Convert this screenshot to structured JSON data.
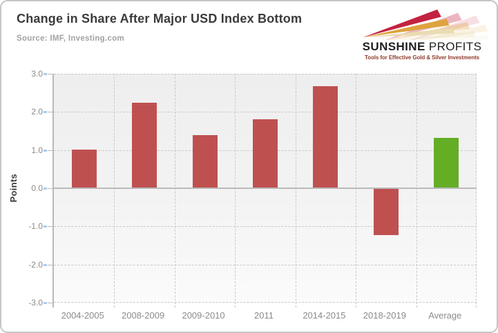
{
  "header": {
    "title": "Change in Share After Major USD Index Bottom",
    "source": "Source: IMF, Investing.com"
  },
  "logo": {
    "brand_bold": "SUNSHINE",
    "brand_light": " PROFITS",
    "tagline": "Tools for Effective Gold & Silver Investments"
  },
  "chart_data": {
    "type": "bar",
    "title": "Change in Share After Major USD Index Bottom",
    "xlabel": "",
    "ylabel": "Points",
    "categories": [
      "2004-2005",
      "2008-2009",
      "2009-2010",
      "2011",
      "2014-2015",
      "2018-2019",
      "Average"
    ],
    "values": [
      1.01,
      2.25,
      1.39,
      1.81,
      2.68,
      -1.23,
      1.32
    ],
    "bar_colors": [
      "#bf5050",
      "#bf5050",
      "#bf5050",
      "#bf5050",
      "#bf5050",
      "#bf5050",
      "#64ae26"
    ],
    "ylim": [
      -3.0,
      3.0
    ],
    "ytick_step": 1.0,
    "ytick_labels": [
      "-3.0",
      "-2.0",
      "-1.0",
      "0.0",
      "1.0",
      "2.0",
      "3.0"
    ],
    "grid": "dashed",
    "legend": "none"
  },
  "palette": {
    "bar_red": "#bf5050",
    "bar_green": "#64ae26",
    "grid_line": "#c8c8c8",
    "axis_line": "#b9b9b9",
    "tick_blue": "#aaccec",
    "title_text": "#3b3b3b",
    "muted_text": "#a2a2a2",
    "axis_text": "#8a8a8a",
    "logo_red": "#c32240",
    "logo_gold": "#dea33e",
    "logo_cream": "#e9dcb2",
    "logo_tagline_text": "#8f3c2c"
  }
}
